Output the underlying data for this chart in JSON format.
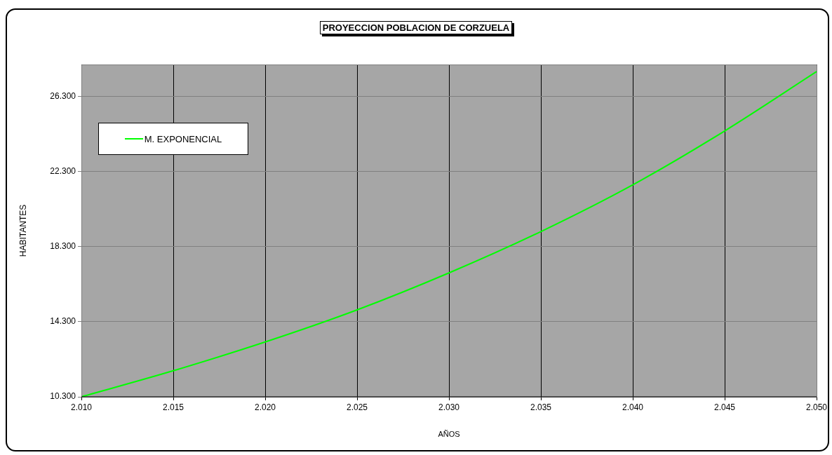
{
  "chart_data": {
    "type": "line",
    "title": "PROYECCION POBLACION DE CORZUELA",
    "xlabel": "AÑOS",
    "ylabel": "HABITANTES",
    "x": [
      2010,
      2015,
      2020,
      2025,
      2030,
      2035,
      2040,
      2045,
      2050
    ],
    "series": [
      {
        "name": "M. EXPONENCIAL",
        "color": "#00ff00",
        "values": [
          10300,
          11690,
          13220,
          14930,
          16900,
          19100,
          21590,
          24460,
          27620
        ]
      }
    ],
    "xlim": [
      2010,
      2050
    ],
    "xticks": [
      {
        "value": 2010,
        "label": "2.010"
      },
      {
        "value": 2015,
        "label": "2.015"
      },
      {
        "value": 2020,
        "label": "2.020"
      },
      {
        "value": 2025,
        "label": "2.025"
      },
      {
        "value": 2030,
        "label": "2.030"
      },
      {
        "value": 2035,
        "label": "2.035"
      },
      {
        "value": 2040,
        "label": "2.040"
      },
      {
        "value": 2045,
        "label": "2.045"
      },
      {
        "value": 2050,
        "label": "2.050"
      }
    ],
    "ylim": [
      10300,
      28000
    ],
    "yticks": [
      {
        "value": 10300,
        "label": "10.300"
      },
      {
        "value": 14300,
        "label": "14.300"
      },
      {
        "value": 18300,
        "label": "18.300"
      },
      {
        "value": 22300,
        "label": "22.300"
      },
      {
        "value": 26300,
        "label": "26.300"
      }
    ],
    "grid": true,
    "legend": "top left",
    "marker": "none",
    "line_style": "solid"
  }
}
